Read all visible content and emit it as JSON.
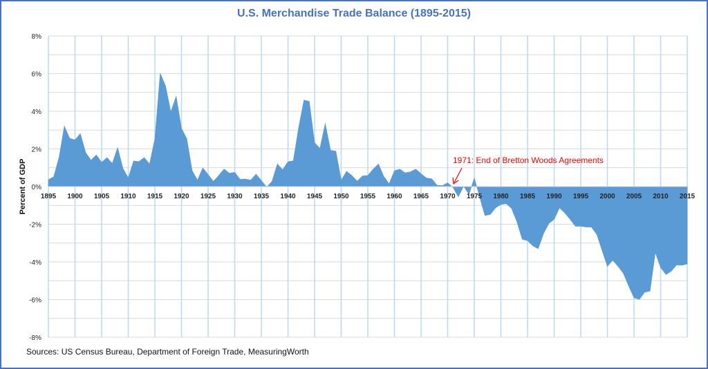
{
  "chart_data": {
    "type": "area",
    "title": "U.S. Merchandise Trade Balance (1895-2015)",
    "xlabel": "",
    "ylabel": "Percent of GDP",
    "xlim": [
      1895,
      2015
    ],
    "ylim": [
      -8,
      8
    ],
    "x_ticks": [
      "1895",
      "1900",
      "1905",
      "1910",
      "1915",
      "1920",
      "1925",
      "1930",
      "1935",
      "1940",
      "1945",
      "1950",
      "1955",
      "1960",
      "1965",
      "1970",
      "1975",
      "1980",
      "1985",
      "1990",
      "1995",
      "2000",
      "2005",
      "2010",
      "2015"
    ],
    "y_ticks": [
      "8%",
      "6%",
      "4%",
      "2%",
      "0%",
      "-2%",
      "-4%",
      "-6%",
      "-8%"
    ],
    "y_tick_values": [
      8,
      6,
      4,
      2,
      0,
      -2,
      -4,
      -6,
      -8
    ],
    "grid": true,
    "fill_color": "#5b9bd5",
    "x": [
      1895,
      1896,
      1897,
      1898,
      1899,
      1900,
      1901,
      1902,
      1903,
      1904,
      1905,
      1906,
      1907,
      1908,
      1909,
      1910,
      1911,
      1912,
      1913,
      1914,
      1915,
      1916,
      1917,
      1918,
      1919,
      1920,
      1921,
      1922,
      1923,
      1924,
      1925,
      1926,
      1927,
      1928,
      1929,
      1930,
      1931,
      1932,
      1933,
      1934,
      1935,
      1936,
      1937,
      1938,
      1939,
      1940,
      1941,
      1942,
      1943,
      1944,
      1945,
      1946,
      1947,
      1948,
      1949,
      1950,
      1951,
      1952,
      1953,
      1954,
      1955,
      1956,
      1957,
      1958,
      1959,
      1960,
      1961,
      1962,
      1963,
      1964,
      1965,
      1966,
      1967,
      1968,
      1969,
      1970,
      1971,
      1972,
      1973,
      1974,
      1975,
      1976,
      1977,
      1978,
      1979,
      1980,
      1981,
      1982,
      1983,
      1984,
      1985,
      1986,
      1987,
      1988,
      1989,
      1990,
      1991,
      1992,
      1993,
      1994,
      1995,
      1996,
      1997,
      1998,
      1999,
      2000,
      2001,
      2002,
      2003,
      2004,
      2005,
      2006,
      2007,
      2008,
      2009,
      2010,
      2011,
      2012,
      2013,
      2014,
      2015
    ],
    "values": [
      0.37,
      0.52,
      1.56,
      3.21,
      2.56,
      2.48,
      2.81,
      1.81,
      1.4,
      1.68,
      1.29,
      1.54,
      1.23,
      2.07,
      0.97,
      0.46,
      1.36,
      1.33,
      1.54,
      1.2,
      2.54,
      6.02,
      5.35,
      3.97,
      4.8,
      3.09,
      2.54,
      0.85,
      0.34,
      0.99,
      0.64,
      0.28,
      0.59,
      0.93,
      0.71,
      0.76,
      0.38,
      0.4,
      0.34,
      0.66,
      0.32,
      -0.03,
      0.28,
      1.2,
      0.9,
      1.32,
      1.37,
      3.13,
      4.59,
      4.53,
      2.33,
      2.03,
      3.35,
      1.93,
      1.88,
      0.34,
      0.81,
      0.59,
      0.29,
      0.56,
      0.59,
      0.93,
      1.2,
      0.54,
      0.15,
      0.84,
      0.93,
      0.73,
      0.78,
      0.93,
      0.68,
      0.46,
      0.42,
      0.07,
      0.05,
      0.2,
      -0.05,
      -0.54,
      0.02,
      -0.42,
      0.46,
      -0.55,
      -1.54,
      -1.48,
      -1.13,
      -0.95,
      -0.91,
      -1.16,
      -1.87,
      -2.8,
      -2.87,
      -3.15,
      -3.3,
      -2.5,
      -1.96,
      -1.74,
      -1.13,
      -1.4,
      -1.74,
      -2.11,
      -2.11,
      -2.15,
      -2.15,
      -2.54,
      -3.39,
      -4.24,
      -3.91,
      -4.24,
      -4.61,
      -5.28,
      -5.91,
      -5.99,
      -5.61,
      -5.55,
      -3.51,
      -4.3,
      -4.67,
      -4.49,
      -4.16,
      -4.18,
      -4.11
    ],
    "annotations": [
      {
        "text": "1971: End of Bretton Woods Agreements",
        "x": 1971,
        "y": 0,
        "color": "#ff0000"
      }
    ],
    "source": "Sources: US Census Bureau, Department of Foreign Trade, MeasuringWorth"
  }
}
